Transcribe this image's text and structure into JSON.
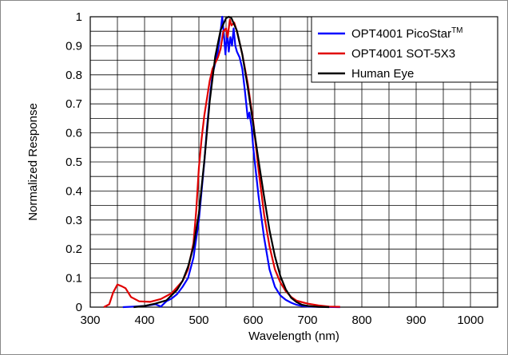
{
  "chart_data": {
    "type": "line",
    "xlabel": "Wavelength (nm)",
    "ylabel": "Normalized Response",
    "xlim": [
      300,
      1050
    ],
    "ylim": [
      0,
      1
    ],
    "x_ticks": [
      300,
      400,
      500,
      600,
      700,
      800,
      900,
      1000
    ],
    "y_ticks": [
      0,
      0.1,
      0.2,
      0.3,
      0.4,
      0.5,
      0.6,
      0.7,
      0.8,
      0.9,
      1
    ],
    "x_tick_labels": [
      "300",
      "400",
      "500",
      "600",
      "700",
      "800",
      "900",
      "1000"
    ],
    "y_tick_labels": [
      "0",
      "0.1",
      "0.2",
      "0.3",
      "0.4",
      "0.5",
      "0.6",
      "0.7",
      "0.8",
      "0.9",
      "1"
    ],
    "grid": true,
    "legend_position": "top-right",
    "series": [
      {
        "name": "OPT4001 PicoStar",
        "name_superscript": "TM",
        "color": "#0000ff",
        "points": [
          [
            360,
            0
          ],
          [
            380,
            0.002
          ],
          [
            400,
            0.004
          ],
          [
            420,
            0.01
          ],
          [
            430,
            0.002
          ],
          [
            440,
            0.02
          ],
          [
            450,
            0.03
          ],
          [
            460,
            0.045
          ],
          [
            470,
            0.07
          ],
          [
            480,
            0.1
          ],
          [
            490,
            0.17
          ],
          [
            500,
            0.3
          ],
          [
            505,
            0.4
          ],
          [
            510,
            0.5
          ],
          [
            515,
            0.62
          ],
          [
            520,
            0.72
          ],
          [
            525,
            0.8
          ],
          [
            530,
            0.84
          ],
          [
            535,
            0.88
          ],
          [
            540,
            0.95
          ],
          [
            543,
            1.0
          ],
          [
            546,
            0.94
          ],
          [
            549,
            0.87
          ],
          [
            552,
            0.95
          ],
          [
            555,
            0.88
          ],
          [
            558,
            0.93
          ],
          [
            561,
            0.9
          ],
          [
            564,
            0.96
          ],
          [
            567,
            0.9
          ],
          [
            570,
            0.88
          ],
          [
            575,
            0.86
          ],
          [
            580,
            0.82
          ],
          [
            585,
            0.74
          ],
          [
            590,
            0.65
          ],
          [
            593,
            0.67
          ],
          [
            597,
            0.62
          ],
          [
            600,
            0.55
          ],
          [
            610,
            0.38
          ],
          [
            620,
            0.24
          ],
          [
            630,
            0.13
          ],
          [
            640,
            0.07
          ],
          [
            650,
            0.04
          ],
          [
            660,
            0.025
          ],
          [
            670,
            0.015
          ],
          [
            680,
            0.008
          ],
          [
            690,
            0.004
          ],
          [
            700,
            0.002
          ],
          [
            720,
            0.001
          ],
          [
            760,
            0
          ]
        ]
      },
      {
        "name": "OPT4001 SOT-5X3",
        "color": "#e00000",
        "points": [
          [
            325,
            0
          ],
          [
            335,
            0.01
          ],
          [
            342,
            0.05
          ],
          [
            350,
            0.078
          ],
          [
            358,
            0.072
          ],
          [
            365,
            0.065
          ],
          [
            375,
            0.035
          ],
          [
            390,
            0.02
          ],
          [
            410,
            0.018
          ],
          [
            430,
            0.028
          ],
          [
            450,
            0.048
          ],
          [
            470,
            0.09
          ],
          [
            480,
            0.13
          ],
          [
            490,
            0.22
          ],
          [
            495,
            0.33
          ],
          [
            500,
            0.48
          ],
          [
            505,
            0.58
          ],
          [
            510,
            0.66
          ],
          [
            515,
            0.72
          ],
          [
            520,
            0.78
          ],
          [
            525,
            0.82
          ],
          [
            530,
            0.84
          ],
          [
            535,
            0.86
          ],
          [
            540,
            0.89
          ],
          [
            545,
            0.95
          ],
          [
            550,
            0.96
          ],
          [
            553,
            0.93
          ],
          [
            557,
            0.99
          ],
          [
            560,
            0.97
          ],
          [
            565,
            0.98
          ],
          [
            570,
            0.95
          ],
          [
            580,
            0.87
          ],
          [
            590,
            0.77
          ],
          [
            600,
            0.64
          ],
          [
            610,
            0.47
          ],
          [
            620,
            0.32
          ],
          [
            630,
            0.21
          ],
          [
            640,
            0.13
          ],
          [
            650,
            0.085
          ],
          [
            660,
            0.055
          ],
          [
            670,
            0.035
          ],
          [
            680,
            0.022
          ],
          [
            700,
            0.012
          ],
          [
            720,
            0.006
          ],
          [
            740,
            0.002
          ],
          [
            760,
            0.001
          ]
        ]
      },
      {
        "name": "Human Eye",
        "color": "#000000",
        "points": [
          [
            380,
            0
          ],
          [
            400,
            0.004
          ],
          [
            420,
            0.012
          ],
          [
            440,
            0.023
          ],
          [
            460,
            0.06
          ],
          [
            470,
            0.091
          ],
          [
            480,
            0.139
          ],
          [
            490,
            0.208
          ],
          [
            500,
            0.323
          ],
          [
            510,
            0.503
          ],
          [
            520,
            0.71
          ],
          [
            530,
            0.862
          ],
          [
            540,
            0.954
          ],
          [
            550,
            0.995
          ],
          [
            555,
            1.0
          ],
          [
            560,
            0.995
          ],
          [
            570,
            0.952
          ],
          [
            580,
            0.87
          ],
          [
            590,
            0.757
          ],
          [
            600,
            0.631
          ],
          [
            610,
            0.503
          ],
          [
            620,
            0.381
          ],
          [
            630,
            0.265
          ],
          [
            640,
            0.175
          ],
          [
            650,
            0.107
          ],
          [
            660,
            0.061
          ],
          [
            670,
            0.032
          ],
          [
            680,
            0.017
          ],
          [
            690,
            0.008
          ],
          [
            700,
            0.004
          ],
          [
            720,
            0.001
          ],
          [
            740,
            0
          ]
        ]
      }
    ]
  }
}
